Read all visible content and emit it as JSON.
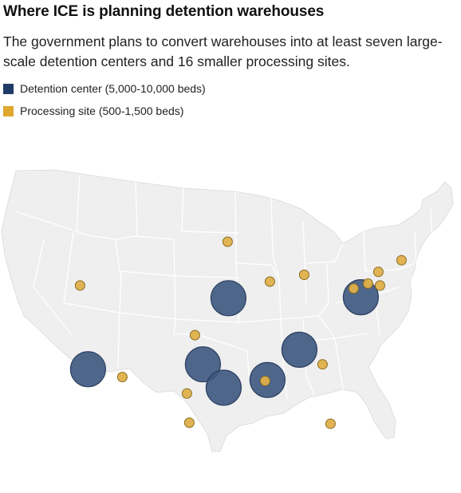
{
  "title": "Where ICE is planning detention warehouses",
  "subtitle": "The government plans to convert warehouses into at least seven large-scale detention centers and 16 smaller processing sites.",
  "legend": [
    {
      "label": "Detention center (5,000-10,000 beds)",
      "color": "#1f3a66"
    },
    {
      "label": "Processing site (500-1,500 beds)",
      "color": "#e0a82e"
    }
  ],
  "map": {
    "region": "Contiguous United States",
    "land_color": "#efefef",
    "border_color": "#ffffff",
    "detention_color": "#3d5680",
    "processing_color": "#dfb04a"
  },
  "chart_data": {
    "type": "map",
    "title": "Where ICE is planning detention warehouses",
    "series": [
      {
        "name": "Detention center (5,000-10,000 beds)",
        "points": [
          {
            "lat": 31.8,
            "lon": -110.8
          },
          {
            "lat": 32.3,
            "lon": -96.4
          },
          {
            "lat": 29.9,
            "lon": -93.8
          },
          {
            "lat": 39.1,
            "lon": -93.2
          },
          {
            "lat": 30.7,
            "lon": -88.3
          },
          {
            "lat": 33.8,
            "lon": -84.3
          },
          {
            "lat": 39.2,
            "lon": -76.6
          }
        ]
      },
      {
        "name": "Processing site (500-1,500 beds)",
        "points": [
          {
            "lat": 40.4,
            "lon": -111.8
          },
          {
            "lat": 31.0,
            "lon": -106.5
          },
          {
            "lat": 35.3,
            "lon": -97.4
          },
          {
            "lat": 29.3,
            "lon": -98.4
          },
          {
            "lat": 26.3,
            "lon": -98.1
          },
          {
            "lat": 44.9,
            "lon": -93.3
          },
          {
            "lat": 40.8,
            "lon": -88.0
          },
          {
            "lat": 41.5,
            "lon": -83.7
          },
          {
            "lat": 30.6,
            "lon": -88.6
          },
          {
            "lat": 32.3,
            "lon": -81.4
          },
          {
            "lat": 26.2,
            "lon": -80.4
          },
          {
            "lat": 40.1,
            "lon": -77.5
          },
          {
            "lat": 40.6,
            "lon": -75.7
          },
          {
            "lat": 41.8,
            "lon": -74.4
          },
          {
            "lat": 40.4,
            "lon": -74.2
          },
          {
            "lat": 43.0,
            "lon": -71.5
          }
        ]
      }
    ]
  }
}
